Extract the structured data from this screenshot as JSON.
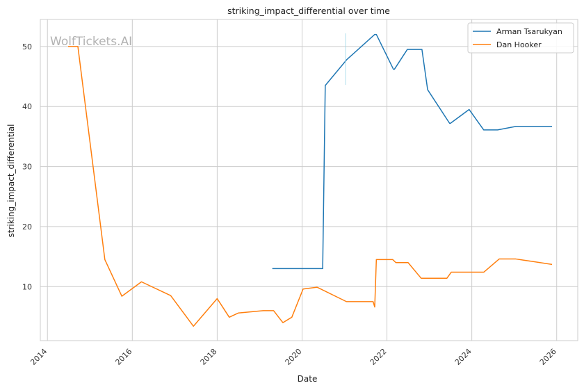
{
  "chart_data": {
    "type": "line",
    "title": "striking_impact_differential over time",
    "xlabel": "Date",
    "ylabel": "striking_impact_differential",
    "watermark": "WolfTickets.AI",
    "x_ticks": [
      "2014",
      "2016",
      "2018",
      "2020",
      "2022",
      "2024",
      "2026"
    ],
    "y_ticks": [
      "10",
      "20",
      "30",
      "40",
      "50"
    ],
    "xlim": [
      "2013-11-01",
      "2026-07-01"
    ],
    "ylim": [
      1,
      54.5
    ],
    "grid": true,
    "legend_position": "top-right",
    "series": [
      {
        "name": "Arman Tsarukyan",
        "color": "#1f77b4",
        "points": [
          [
            "2019-04-20",
            13.0
          ],
          [
            "2020-06-27",
            13.0
          ],
          [
            "2020-07-19",
            43.5
          ],
          [
            "2021-01-20",
            47.8
          ],
          [
            "2021-09-18",
            52.0
          ],
          [
            "2021-10-02",
            52.0
          ],
          [
            "2022-02-26",
            46.2
          ],
          [
            "2022-03-06",
            46.2
          ],
          [
            "2022-06-25",
            49.5
          ],
          [
            "2022-10-29",
            49.5
          ],
          [
            "2022-12-17",
            42.8
          ],
          [
            "2023-06-24",
            37.2
          ],
          [
            "2023-07-01",
            37.2
          ],
          [
            "2023-12-09",
            39.5
          ],
          [
            "2024-04-13",
            36.1
          ],
          [
            "2024-08-10",
            36.1
          ],
          [
            "2025-01-18",
            36.7
          ],
          [
            "2025-11-22",
            36.7
          ]
        ]
      },
      {
        "name": "Dan Hooker",
        "color": "#ff7f0e",
        "points": [
          [
            "2014-06-28",
            50.0
          ],
          [
            "2014-09-20",
            50.0
          ],
          [
            "2015-05-10",
            14.5
          ],
          [
            "2015-10-03",
            8.4
          ],
          [
            "2016-03-20",
            10.8
          ],
          [
            "2016-11-27",
            8.5
          ],
          [
            "2017-06-11",
            3.4
          ],
          [
            "2018-01-01",
            8.0
          ],
          [
            "2018-04-15",
            4.9
          ],
          [
            "2018-07-01",
            5.6
          ],
          [
            "2019-02-01",
            6.0
          ],
          [
            "2019-05-01",
            6.0
          ],
          [
            "2019-07-20",
            4.0
          ],
          [
            "2019-10-05",
            4.9
          ],
          [
            "2020-01-10",
            9.6
          ],
          [
            "2020-05-10",
            9.9
          ],
          [
            "2021-01-18",
            7.5
          ],
          [
            "2021-09-04",
            7.5
          ],
          [
            "2021-09-18",
            6.6
          ],
          [
            "2021-10-02",
            14.5
          ],
          [
            "2022-02-20",
            14.5
          ],
          [
            "2022-03-19",
            14.0
          ],
          [
            "2022-07-02",
            14.0
          ],
          [
            "2022-10-22",
            11.4
          ],
          [
            "2023-06-01",
            11.4
          ],
          [
            "2023-07-08",
            12.4
          ],
          [
            "2024-04-13",
            12.4
          ],
          [
            "2024-08-24",
            14.6
          ],
          [
            "2025-01-15",
            14.6
          ],
          [
            "2025-11-22",
            13.7
          ]
        ]
      }
    ]
  }
}
